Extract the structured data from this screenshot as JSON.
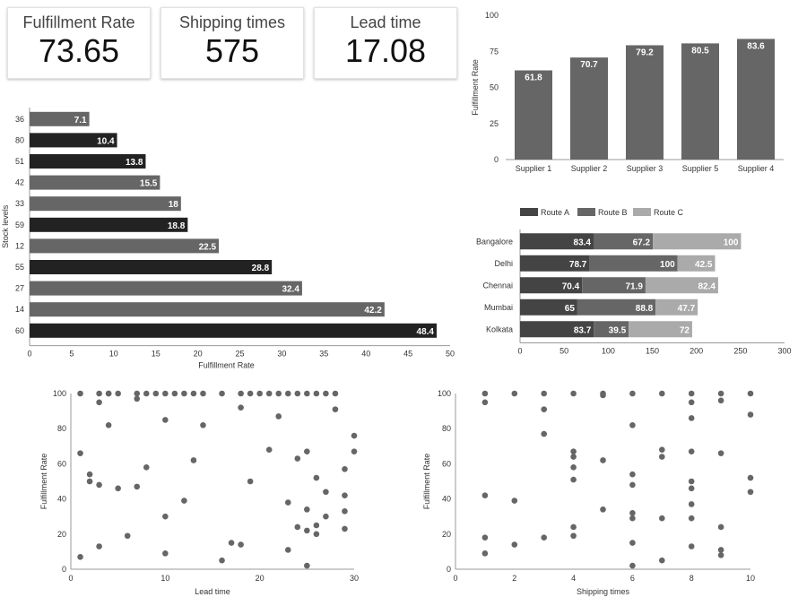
{
  "kpis": [
    {
      "label": "Fulfillment Rate",
      "value": "73.65"
    },
    {
      "label": "Shipping times",
      "value": "575"
    },
    {
      "label": "Lead time",
      "value": "17.08"
    }
  ],
  "colors": {
    "dark": "#222222",
    "mid": "#666666",
    "light": "#aaaaaa",
    "route_a": "#444444",
    "route_b": "#666666",
    "route_c": "#aaaaaa",
    "dot": "#666666",
    "axis": "#999999"
  },
  "chart_data": [
    {
      "type": "bar",
      "orientation": "horizontal",
      "title": "",
      "ylabel": "Stock levels",
      "xlabel": "Fulfillment Rate",
      "categories": [
        "36",
        "80",
        "51",
        "42",
        "33",
        "59",
        "12",
        "55",
        "27",
        "14",
        "60"
      ],
      "values": [
        7.1,
        10.4,
        13.8,
        15.5,
        18,
        18.8,
        22.5,
        28.8,
        32.4,
        42.2,
        48.4
      ],
      "bar_shades": [
        "mid",
        "dark",
        "dark",
        "mid",
        "mid",
        "dark",
        "mid",
        "dark",
        "mid",
        "mid",
        "dark"
      ],
      "xlim": [
        0,
        50
      ],
      "xticks": [
        0,
        5,
        10,
        15,
        20,
        25,
        30,
        35,
        40,
        45,
        50
      ]
    },
    {
      "type": "bar",
      "title": "",
      "ylabel": "Fulfillment Rate",
      "xlabel": "",
      "categories": [
        "Supplier 1",
        "Supplier 2",
        "Supplier 3",
        "Supplier 5",
        "Supplier 4"
      ],
      "values": [
        61.8,
        70.7,
        79.2,
        80.5,
        83.6
      ],
      "ylim": [
        0,
        100
      ],
      "yticks": [
        0,
        25,
        50,
        75,
        100
      ]
    },
    {
      "type": "bar",
      "orientation": "horizontal",
      "stacked": true,
      "title": "",
      "categories": [
        "Bangalore",
        "Delhi",
        "Chennai",
        "Mumbai",
        "Kolkata"
      ],
      "series": [
        {
          "name": "Route A",
          "values": [
            83.4,
            78.7,
            70.4,
            65,
            83.7
          ]
        },
        {
          "name": "Route B",
          "values": [
            67.2,
            100,
            71.9,
            88.8,
            39.5
          ]
        },
        {
          "name": "Route C",
          "values": [
            100,
            42.5,
            82.4,
            47.7,
            72
          ]
        }
      ],
      "legend": "top-left",
      "xlim": [
        0,
        300
      ],
      "xticks": [
        0,
        50,
        100,
        150,
        200,
        250,
        300
      ]
    },
    {
      "type": "scatter",
      "title": "",
      "xlabel": "Lead time",
      "ylabel": "Fulfillment Rate",
      "xlim": [
        0,
        30
      ],
      "ylim": [
        0,
        100
      ],
      "xticks": [
        0,
        10,
        20,
        30
      ],
      "yticks": [
        0,
        20,
        40,
        60,
        80,
        100
      ],
      "x": [
        1,
        3,
        4,
        4,
        5,
        7,
        8,
        9,
        10,
        11,
        12,
        13,
        14,
        16,
        18,
        19,
        20,
        21,
        22,
        23,
        24,
        25,
        26,
        27,
        28,
        3,
        7,
        18,
        4,
        10,
        22,
        14,
        28,
        21,
        30,
        25,
        13,
        24,
        1,
        30,
        8,
        2,
        2,
        3,
        5,
        7,
        29,
        27,
        12,
        19,
        10,
        23,
        26,
        27,
        29,
        29,
        25,
        25,
        24,
        26,
        29,
        6,
        17,
        18,
        10,
        23,
        3,
        26,
        16,
        1,
        25
      ],
      "y": [
        100,
        100,
        100,
        100,
        100,
        100,
        100,
        100,
        100,
        100,
        100,
        100,
        100,
        100,
        100,
        100,
        100,
        100,
        100,
        100,
        100,
        100,
        100,
        100,
        100,
        95,
        97,
        92,
        82,
        85,
        87,
        82,
        91,
        68,
        76,
        67,
        62,
        63,
        66,
        67,
        58,
        54,
        50,
        48,
        46,
        47,
        57,
        44,
        39,
        50,
        30,
        38,
        52,
        30,
        42,
        33,
        34,
        22,
        24,
        20,
        23,
        19,
        15,
        14,
        9,
        11,
        13,
        25,
        5,
        7,
        2
      ]
    },
    {
      "type": "scatter",
      "title": "",
      "xlabel": "Shipping times",
      "ylabel": "Fulfillment Rate",
      "xlim": [
        0,
        10
      ],
      "ylim": [
        0,
        100
      ],
      "xticks": [
        0,
        2,
        4,
        6,
        8,
        10
      ],
      "yticks": [
        0,
        20,
        40,
        60,
        80,
        100
      ],
      "x": [
        1,
        2,
        3,
        4,
        5,
        6,
        7,
        8,
        9,
        10,
        1,
        3,
        5,
        8,
        9,
        3,
        6,
        8,
        10,
        4,
        4,
        5,
        7,
        7,
        8,
        9,
        4,
        4,
        6,
        6,
        8,
        8,
        10,
        1,
        2,
        5,
        6,
        7,
        8,
        10,
        4,
        8,
        9,
        1,
        2,
        3,
        4,
        6,
        9,
        9,
        1,
        6,
        7,
        8,
        6
      ],
      "y": [
        100,
        100,
        100,
        100,
        100,
        100,
        100,
        100,
        100,
        100,
        95,
        91,
        99,
        95,
        96,
        77,
        82,
        86,
        88,
        67,
        64,
        62,
        68,
        64,
        67,
        66,
        58,
        51,
        54,
        48,
        50,
        46,
        52,
        42,
        39,
        34,
        32,
        29,
        29,
        44,
        24,
        37,
        24,
        18,
        14,
        18,
        19,
        15,
        11,
        8,
        9,
        2,
        5,
        13,
        29
      ]
    }
  ]
}
